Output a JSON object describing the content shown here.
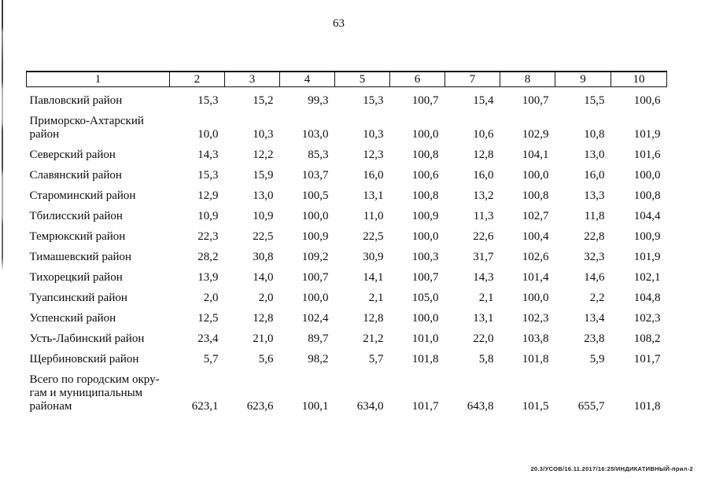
{
  "page": {
    "number": "63"
  },
  "table": {
    "column_headers": [
      "1",
      "2",
      "3",
      "4",
      "5",
      "6",
      "7",
      "8",
      "9",
      "10"
    ],
    "rows": [
      {
        "name": "Павловский район",
        "values": [
          "15,3",
          "15,2",
          "99,3",
          "15,3",
          "100,7",
          "15,4",
          "100,7",
          "15,5",
          "100,6"
        ]
      },
      {
        "name": "Приморско-Ахтарский\nрайон",
        "values": [
          "10,0",
          "10,3",
          "103,0",
          "10,3",
          "100,0",
          "10,6",
          "102,9",
          "10,8",
          "101,9"
        ]
      },
      {
        "name": "Северский район",
        "values": [
          "14,3",
          "12,2",
          "85,3",
          "12,3",
          "100,8",
          "12,8",
          "104,1",
          "13,0",
          "101,6"
        ]
      },
      {
        "name": "Славянский район",
        "values": [
          "15,3",
          "15,9",
          "103,7",
          "16,0",
          "100,6",
          "16,0",
          "100,0",
          "16,0",
          "100,0"
        ]
      },
      {
        "name": "Староминский район",
        "values": [
          "12,9",
          "13,0",
          "100,5",
          "13,1",
          "100,8",
          "13,2",
          "100,8",
          "13,3",
          "100,8"
        ]
      },
      {
        "name": "Тбилисский район",
        "values": [
          "10,9",
          "10,9",
          "100,0",
          "11,0",
          "100,9",
          "11,3",
          "102,7",
          "11,8",
          "104,4"
        ]
      },
      {
        "name": "Темрюкский район",
        "values": [
          "22,3",
          "22,5",
          "100,9",
          "22,5",
          "100,0",
          "22,6",
          "100,4",
          "22,8",
          "100,9"
        ]
      },
      {
        "name": "Тимашевский район",
        "values": [
          "28,2",
          "30,8",
          "109,2",
          "30,9",
          "100,3",
          "31,7",
          "102,6",
          "32,3",
          "101,9"
        ]
      },
      {
        "name": "Тихорецкий район",
        "values": [
          "13,9",
          "14,0",
          "100,7",
          "14,1",
          "100,7",
          "14,3",
          "101,4",
          "14,6",
          "102,1"
        ]
      },
      {
        "name": "Туапсинский район",
        "values": [
          "2,0",
          "2,0",
          "100,0",
          "2,1",
          "105,0",
          "2,1",
          "100,0",
          "2,2",
          "104,8"
        ]
      },
      {
        "name": "Успенский район",
        "values": [
          "12,5",
          "12,8",
          "102,4",
          "12,8",
          "100,0",
          "13,1",
          "102,3",
          "13,4",
          "102,3"
        ]
      },
      {
        "name": "Усть-Лабинский район",
        "values": [
          "23,4",
          "21,0",
          "89,7",
          "21,2",
          "101,0",
          "22,0",
          "103,8",
          "23,8",
          "108,2"
        ]
      },
      {
        "name": "Щербиновский район",
        "values": [
          "5,7",
          "5,6",
          "98,2",
          "5,7",
          "101,8",
          "5,8",
          "101,8",
          "5,9",
          "101,7"
        ]
      },
      {
        "name": "Всего по городским окру-\nгам и муниципальным\nрайонам",
        "values": [
          "623,1",
          "623,6",
          "100,1",
          "634,0",
          "101,7",
          "643,8",
          "101,5",
          "655,7",
          "101,8"
        ]
      }
    ]
  },
  "footer": {
    "stamp": "20.3/УСОВ/16.11.2017/16:25/ИНДИКАТИВНЫЙ-прил-2"
  }
}
